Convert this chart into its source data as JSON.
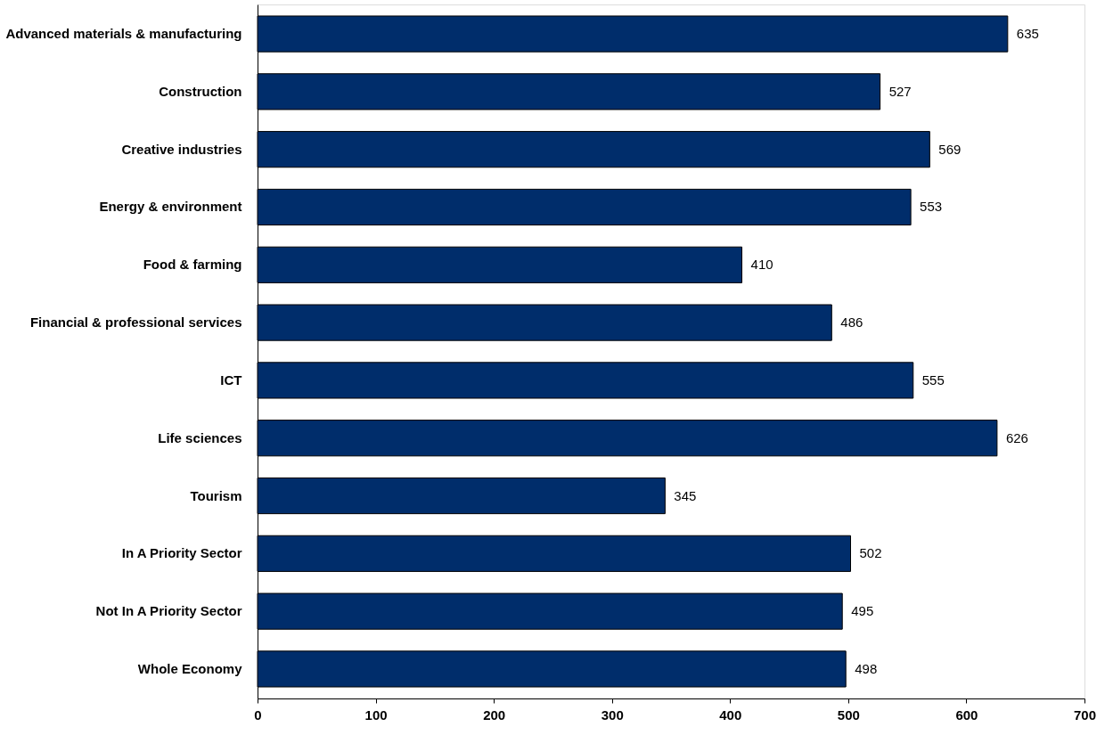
{
  "chart_data": {
    "type": "bar",
    "orientation": "horizontal",
    "categories": [
      "Advanced materials & manufacturing",
      "Construction",
      "Creative industries",
      "Energy & environment",
      "Food & farming",
      "Financial & professional services",
      "ICT",
      "Life sciences",
      "Tourism",
      "In A Priority Sector",
      "Not In A Priority Sector",
      "Whole Economy"
    ],
    "values": [
      635,
      527,
      569,
      553,
      410,
      486,
      555,
      626,
      345,
      502,
      495,
      498
    ],
    "color": "#002d6b",
    "xlim": [
      0,
      700
    ],
    "xticks": [
      0,
      100,
      200,
      300,
      400,
      500,
      600,
      700
    ],
    "data_labels": true,
    "grid": false
  }
}
